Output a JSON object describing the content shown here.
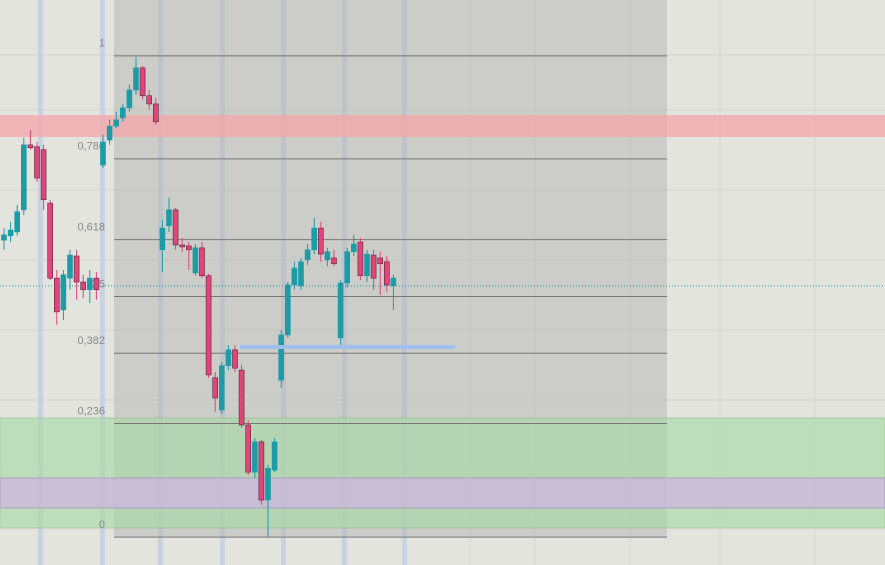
{
  "chart_data": {
    "type": "candlestick",
    "ylim": [
      -0.058,
      1.116
    ],
    "yticks": [
      1,
      {
        "value": 0.786,
        "label": "0,786"
      },
      {
        "value": 0.618,
        "label": "0,618"
      },
      {
        "value": 0.5,
        "label": "0,5"
      },
      {
        "value": 0.382,
        "label": "0,382"
      },
      {
        "value": 0.236,
        "label": "0,236"
      },
      0
    ],
    "colors": {
      "up": "#1d9ca6",
      "down": "#e0457b"
    },
    "candles": [
      [
        0.617,
        0.642,
        0.597,
        0.628
      ],
      [
        0.626,
        0.655,
        0.613,
        0.638
      ],
      [
        0.634,
        0.69,
        0.626,
        0.676
      ],
      [
        0.68,
        0.83,
        0.669,
        0.815
      ],
      [
        0.815,
        0.846,
        0.805,
        0.809
      ],
      [
        0.811,
        0.821,
        0.738,
        0.746
      ],
      [
        0.805,
        0.815,
        0.68,
        0.701
      ],
      [
        0.694,
        0.701,
        0.534,
        0.538
      ],
      [
        0.538,
        0.555,
        0.441,
        0.468
      ],
      [
        0.472,
        0.555,
        0.451,
        0.545
      ],
      [
        0.538,
        0.597,
        0.514,
        0.586
      ],
      [
        0.584,
        0.597,
        0.493,
        0.53
      ],
      [
        0.53,
        0.545,
        0.497,
        0.514
      ],
      [
        0.514,
        0.555,
        0.486,
        0.538
      ],
      [
        0.538,
        0.551,
        0.493,
        0.514
      ],
      [
        0.773,
        0.836,
        0.767,
        0.821
      ],
      [
        0.825,
        0.867,
        0.815,
        0.854
      ],
      [
        0.854,
        0.884,
        0.85,
        0.867
      ],
      [
        0.871,
        0.9,
        0.863,
        0.892
      ],
      [
        0.892,
        0.94,
        0.884,
        0.929
      ],
      [
        0.929,
        0.996,
        0.919,
        0.975
      ],
      [
        0.975,
        0.979,
        0.909,
        0.917
      ],
      [
        0.917,
        0.929,
        0.888,
        0.9
      ],
      [
        0.9,
        0.913,
        0.857,
        0.863
      ],
      [
        0.597,
        0.659,
        0.551,
        0.642
      ],
      [
        0.647,
        0.705,
        0.634,
        0.68
      ],
      [
        0.68,
        0.684,
        0.597,
        0.607
      ],
      [
        0.607,
        0.622,
        0.593,
        0.603
      ],
      [
        0.605,
        0.613,
        0.555,
        0.597
      ],
      [
        0.549,
        0.609,
        0.543,
        0.601
      ],
      [
        0.601,
        0.613,
        0.538,
        0.543
      ],
      [
        0.543,
        0.547,
        0.331,
        0.337
      ],
      [
        0.331,
        0.343,
        0.26,
        0.289
      ],
      [
        0.264,
        0.364,
        0.256,
        0.356
      ],
      [
        0.356,
        0.399,
        0.347,
        0.389
      ],
      [
        0.389,
        0.399,
        0.343,
        0.351
      ],
      [
        0.347,
        0.358,
        0.227,
        0.233
      ],
      [
        0.233,
        0.243,
        0.129,
        0.135
      ],
      [
        0.135,
        0.206,
        0.123,
        0.198
      ],
      [
        0.198,
        0.202,
        0.067,
        0.077
      ],
      [
        0.077,
        0.15,
        0,
        0.143
      ],
      [
        0.139,
        0.206,
        0.135,
        0.198
      ],
      [
        0.326,
        0.43,
        0.31,
        0.42
      ],
      [
        0.42,
        0.53,
        0.414,
        0.524
      ],
      [
        0.524,
        0.572,
        0.514,
        0.559
      ],
      [
        0.522,
        0.58,
        0.514,
        0.572
      ],
      [
        0.576,
        0.609,
        0.565,
        0.597
      ],
      [
        0.597,
        0.663,
        0.588,
        0.642
      ],
      [
        0.642,
        0.655,
        0.572,
        0.588
      ],
      [
        0.576,
        0.601,
        0.563,
        0.593
      ],
      [
        0.58,
        0.597,
        0.563,
        0.568
      ],
      [
        0.414,
        0.534,
        0.399,
        0.528
      ],
      [
        0.528,
        0.601,
        0.518,
        0.593
      ],
      [
        0.593,
        0.628,
        0.584,
        0.609
      ],
      [
        0.613,
        0.622,
        0.534,
        0.543
      ],
      [
        0.543,
        0.597,
        0.53,
        0.588
      ],
      [
        0.586,
        0.597,
        0.514,
        0.538
      ],
      [
        0.58,
        0.593,
        0.503,
        0.568
      ],
      [
        0.572,
        0.584,
        0.509,
        0.524
      ],
      [
        0.522,
        0.545,
        0.472,
        0.538
      ]
    ]
  }
}
